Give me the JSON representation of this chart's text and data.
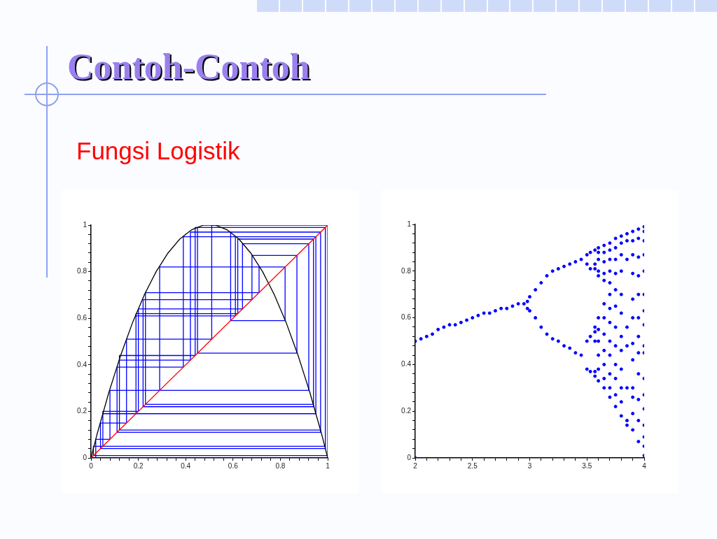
{
  "chart_data": [
    {
      "type": "line",
      "title": "Contoh-Contoh",
      "subtitle": "Fungsi Logistik",
      "xlim": [
        0,
        1
      ],
      "ylim": [
        0,
        1
      ],
      "xticks": [
        0,
        {
          "value": 0.04,
          "label": null
        },
        {
          "value": 0.08,
          "label": null
        },
        {
          "value": 0.12,
          "label": null
        },
        {
          "value": 0.16,
          "label": null
        },
        0.2,
        {
          "value": 0.24,
          "label": null
        },
        {
          "value": 0.28,
          "label": null
        },
        {
          "value": 0.32,
          "label": null
        },
        {
          "value": 0.36,
          "label": null
        },
        0.4,
        {
          "value": 0.44,
          "label": null
        },
        {
          "value": 0.48,
          "label": null
        },
        {
          "value": 0.52,
          "label": null
        },
        {
          "value": 0.56,
          "label": null
        },
        0.6,
        {
          "value": 0.64,
          "label": null
        },
        {
          "value": 0.68,
          "label": null
        },
        {
          "value": 0.72,
          "label": null
        },
        {
          "value": 0.76,
          "label": null
        },
        0.8,
        {
          "value": 0.84,
          "label": null
        },
        {
          "value": 0.88,
          "label": null
        },
        {
          "value": 0.92,
          "label": null
        },
        {
          "value": 0.96,
          "label": null
        },
        1
      ],
      "yticks": [
        0,
        {
          "value": 0.04,
          "label": null
        },
        {
          "value": 0.08,
          "label": null
        },
        {
          "value": 0.12,
          "label": null
        },
        {
          "value": 0.16,
          "label": null
        },
        0.2,
        {
          "value": 0.24,
          "label": null
        },
        {
          "value": 0.28,
          "label": null
        },
        {
          "value": 0.32,
          "label": null
        },
        {
          "value": 0.36,
          "label": null
        },
        0.4,
        {
          "value": 0.44,
          "label": null
        },
        {
          "value": 0.48,
          "label": null
        },
        {
          "value": 0.52,
          "label": null
        },
        {
          "value": 0.56,
          "label": null
        },
        0.6,
        {
          "value": 0.64,
          "label": null
        },
        {
          "value": 0.68,
          "label": null
        },
        {
          "value": 0.72,
          "label": null
        },
        {
          "value": 0.76,
          "label": null
        },
        0.8,
        {
          "value": 0.84,
          "label": null
        },
        {
          "value": 0.88,
          "label": null
        },
        {
          "value": 0.92,
          "label": null
        },
        {
          "value": 0.96,
          "label": null
        },
        1
      ],
      "grid": false,
      "marker": "none",
      "line_style": "solid",
      "series": [
        {
          "color": "#0000ff",
          "x": [
            0.02,
            0.02,
            0.08,
            0.08,
            0.29,
            0.29,
            0.82,
            0.82,
            0.59,
            0.59,
            0.97,
            0.97,
            0.12,
            0.12,
            0.42,
            0.42,
            0.97,
            0.97,
            0.11,
            0.11,
            0.39,
            0.39,
            0.95,
            0.95,
            0.19,
            0.19,
            0.62,
            0.62,
            0.94,
            0.94,
            0.23,
            0.23,
            0.71,
            0.71,
            0.82,
            0.82,
            0.59,
            0.59,
            0.97,
            0.97,
            0.12,
            0.12,
            0.42,
            0.42,
            0.97,
            0.97,
            0.12,
            0.12,
            0.44,
            0.44,
            0.99,
            0.99,
            0.05,
            0.05,
            0.19,
            0.19,
            0.61,
            0.61,
            0.95,
            0.95,
            0.19,
            0.19,
            0.62,
            0.62,
            0.94,
            0.94,
            0.22,
            0.22,
            0.68,
            0.68,
            0.87,
            0.87,
            0.45,
            0.45,
            0.99,
            0.99,
            0.04,
            0.04,
            0.15,
            0.15,
            0.51,
            0.51,
            1,
            1,
            0.01,
            0.01,
            0.05,
            0.05,
            0.2,
            0.2,
            0.64,
            0.64,
            0.92,
            0.92,
            0.29,
            0.29,
            0.82,
            0.82,
            0.59,
            0.59
          ],
          "values": [
            0,
            0.08,
            0.08,
            0.29,
            0.29,
            0.82,
            0.82,
            0.59,
            0.59,
            0.97,
            0.97,
            0.12,
            0.12,
            0.42,
            0.42,
            0.97,
            0.97,
            0.11,
            0.11,
            0.39,
            0.39,
            0.95,
            0.95,
            0.19,
            0.19,
            0.62,
            0.62,
            0.94,
            0.94,
            0.23,
            0.23,
            0.71,
            0.71,
            0.82,
            0.82,
            0.59,
            0.59,
            0.97,
            0.97,
            0.12,
            0.12,
            0.42,
            0.42,
            0.97,
            0.97,
            0.12,
            0.12,
            0.44,
            0.44,
            0.99,
            0.99,
            0.05,
            0.05,
            0.19,
            0.19,
            0.61,
            0.61,
            0.95,
            0.95,
            0.19,
            0.19,
            0.62,
            0.62,
            0.94,
            0.94,
            0.22,
            0.22,
            0.68,
            0.68,
            0.87,
            0.87,
            0.45,
            0.45,
            0.99,
            0.99,
            0.04,
            0.04,
            0.15,
            0.15,
            0.51,
            0.51,
            1,
            1,
            0.01,
            0.01,
            0.05,
            0.05,
            0.2,
            0.2,
            0.64,
            0.64,
            0.92,
            0.92,
            0.29,
            0.29,
            0.82,
            0.82,
            0.59,
            0.59,
            0.97
          ]
        },
        {
          "color": "#000000",
          "x": [
            0,
            0.025,
            0.05,
            0.075,
            0.1,
            0.125,
            0.15,
            0.175,
            0.2,
            0.225,
            0.25,
            0.275,
            0.3,
            0.325,
            0.35,
            0.375,
            0.4,
            0.425,
            0.45,
            0.475,
            0.5,
            0.525,
            0.55,
            0.575,
            0.6,
            0.625,
            0.65,
            0.675,
            0.7,
            0.725,
            0.75,
            0.775,
            0.8,
            0.825,
            0.85,
            0.875,
            0.9,
            0.925,
            0.95,
            0.975,
            1
          ],
          "values": [
            0,
            0.1,
            0.19,
            0.28,
            0.36,
            0.44,
            0.51,
            0.58,
            0.64,
            0.7,
            0.75,
            0.8,
            0.84,
            0.88,
            0.91,
            0.94,
            0.96,
            0.98,
            0.99,
            1,
            1,
            1,
            0.99,
            0.98,
            0.96,
            0.94,
            0.91,
            0.88,
            0.84,
            0.8,
            0.75,
            0.7,
            0.64,
            0.58,
            0.51,
            0.44,
            0.36,
            0.28,
            0.19,
            0.1,
            0
          ]
        },
        {
          "color": "#ff0000",
          "x": [
            0,
            1
          ],
          "values": [
            0,
            1
          ]
        }
      ]
    },
    {
      "type": "scatter",
      "xlim": [
        2,
        4
      ],
      "ylim": [
        0,
        1
      ],
      "xticks": [
        2,
        {
          "value": 2.1,
          "label": null
        },
        {
          "value": 2.2,
          "label": null
        },
        {
          "value": 2.3,
          "label": null
        },
        {
          "value": 2.4,
          "label": null
        },
        2.5,
        {
          "value": 2.6,
          "label": null
        },
        {
          "value": 2.7,
          "label": null
        },
        {
          "value": 2.8,
          "label": null
        },
        {
          "value": 2.9,
          "label": null
        },
        3,
        {
          "value": 3.1,
          "label": null
        },
        {
          "value": 3.2,
          "label": null
        },
        {
          "value": 3.3,
          "label": null
        },
        {
          "value": 3.4,
          "label": null
        },
        3.5,
        {
          "value": 3.6,
          "label": null
        },
        {
          "value": 3.7,
          "label": null
        },
        {
          "value": 3.8,
          "label": null
        },
        {
          "value": 3.9,
          "label": null
        },
        4
      ],
      "yticks": [
        0,
        {
          "value": 0.04,
          "label": null
        },
        {
          "value": 0.08,
          "label": null
        },
        {
          "value": 0.12,
          "label": null
        },
        {
          "value": 0.16,
          "label": null
        },
        0.2,
        {
          "value": 0.24,
          "label": null
        },
        {
          "value": 0.28,
          "label": null
        },
        {
          "value": 0.32,
          "label": null
        },
        {
          "value": 0.36,
          "label": null
        },
        0.4,
        {
          "value": 0.44,
          "label": null
        },
        {
          "value": 0.48,
          "label": null
        },
        {
          "value": 0.52,
          "label": null
        },
        {
          "value": 0.56,
          "label": null
        },
        0.6,
        {
          "value": 0.64,
          "label": null
        },
        {
          "value": 0.68,
          "label": null
        },
        {
          "value": 0.72,
          "label": null
        },
        {
          "value": 0.76,
          "label": null
        },
        0.8,
        {
          "value": 0.84,
          "label": null
        },
        {
          "value": 0.88,
          "label": null
        },
        {
          "value": 0.92,
          "label": null
        },
        {
          "value": 0.96,
          "label": null
        },
        1
      ],
      "grid": false,
      "marker": "circle",
      "series": [
        {
          "color": "#0000ff",
          "x": [
            2,
            2,
            2.05,
            2.1,
            2.15,
            2.2,
            2.25,
            2.3,
            2.35,
            2.4,
            2.45,
            2.5,
            2.55,
            2.6,
            2.65,
            2.7,
            2.75,
            2.8,
            2.85,
            2.9,
            2.95,
            2.98,
            2.98,
            3,
            3,
            3.05,
            3.1,
            3.15,
            3.2,
            3.25,
            3.3,
            3.35,
            3.4,
            3.45,
            3.05,
            3.1,
            3.15,
            3.2,
            3.25,
            3.3,
            3.35,
            3.4,
            3.45,
            3.5,
            3.5,
            3.5,
            3.5,
            3.53,
            3.53,
            3.53,
            3.53,
            3.57,
            3.57,
            3.57,
            3.57,
            3.57,
            3.57,
            3.57,
            3.57,
            3.6,
            3.6,
            3.6,
            3.6,
            3.6,
            3.6,
            3.6,
            3.6,
            3.6,
            3.6,
            3.6,
            3.65,
            3.65,
            3.65,
            3.65,
            3.65,
            3.65,
            3.65,
            3.65,
            3.65,
            3.65,
            3.65,
            3.65,
            3.7,
            3.7,
            3.7,
            3.7,
            3.7,
            3.7,
            3.7,
            3.7,
            3.7,
            3.7,
            3.7,
            3.7,
            3.7,
            3.75,
            3.75,
            3.75,
            3.75,
            3.75,
            3.75,
            3.75,
            3.75,
            3.75,
            3.75,
            3.75,
            3.75,
            3.8,
            3.8,
            3.8,
            3.8,
            3.8,
            3.8,
            3.8,
            3.8,
            3.8,
            3.8,
            3.8,
            3.8,
            3.85,
            3.85,
            3.85,
            3.85,
            3.85,
            3.85,
            3.85,
            3.85,
            3.9,
            3.9,
            3.9,
            3.9,
            3.9,
            3.9,
            3.9,
            3.9,
            3.9,
            3.9,
            3.9,
            3.9,
            3.95,
            3.95,
            3.95,
            3.95,
            3.95,
            3.95,
            3.95,
            3.95,
            3.95,
            3.95,
            3.95,
            3.95,
            4,
            4,
            4,
            4,
            4,
            4,
            4,
            4,
            4,
            4,
            4,
            4,
            4,
            4,
            4,
            4,
            4
          ],
          "values": [
            0,
            0.5,
            0.51,
            0.52,
            0.53,
            0.55,
            0.56,
            0.57,
            0.57,
            0.58,
            0.59,
            0.6,
            0.61,
            0.62,
            0.62,
            0.63,
            0.64,
            0.64,
            0.65,
            0.66,
            0.66,
            0.64,
            0.67,
            0.69,
            0.63,
            0.72,
            0.75,
            0.78,
            0.8,
            0.81,
            0.82,
            0.83,
            0.84,
            0.85,
            0.6,
            0.56,
            0.53,
            0.51,
            0.5,
            0.48,
            0.47,
            0.45,
            0.44,
            0.87,
            0.83,
            0.5,
            0.38,
            0.88,
            0.81,
            0.52,
            0.37,
            0.89,
            0.83,
            0.81,
            0.56,
            0.54,
            0.5,
            0.37,
            0.35,
            0.9,
            0.88,
            0.85,
            0.8,
            0.78,
            0.6,
            0.55,
            0.5,
            0.44,
            0.38,
            0.33,
            0.91,
            0.88,
            0.84,
            0.79,
            0.76,
            0.66,
            0.6,
            0.53,
            0.46,
            0.4,
            0.34,
            0.3,
            0.92,
            0.89,
            0.85,
            0.8,
            0.75,
            0.7,
            0.64,
            0.58,
            0.5,
            0.44,
            0.36,
            0.3,
            0.26,
            0.94,
            0.9,
            0.85,
            0.79,
            0.72,
            0.65,
            0.56,
            0.48,
            0.4,
            0.34,
            0.27,
            0.22,
            0.95,
            0.92,
            0.87,
            0.8,
            0.7,
            0.62,
            0.52,
            0.46,
            0.38,
            0.3,
            0.24,
            0.18,
            0.96,
            0.93,
            0.85,
            0.56,
            0.48,
            0.3,
            0.16,
            0.14,
            0.97,
            0.93,
            0.87,
            0.79,
            0.68,
            0.6,
            0.49,
            0.42,
            0.3,
            0.26,
            0.19,
            0.12,
            0.98,
            0.94,
            0.86,
            0.78,
            0.7,
            0.6,
            0.52,
            0.45,
            0.36,
            0.25,
            0.16,
            0.07,
            0.99,
            0.97,
            0.93,
            0.87,
            0.8,
            0.7,
            0.63,
            0.57,
            0.48,
            0.45,
            0.34,
            0.27,
            0.21,
            0.14,
            0.09,
            0.05,
            0.01
          ]
        }
      ]
    }
  ]
}
